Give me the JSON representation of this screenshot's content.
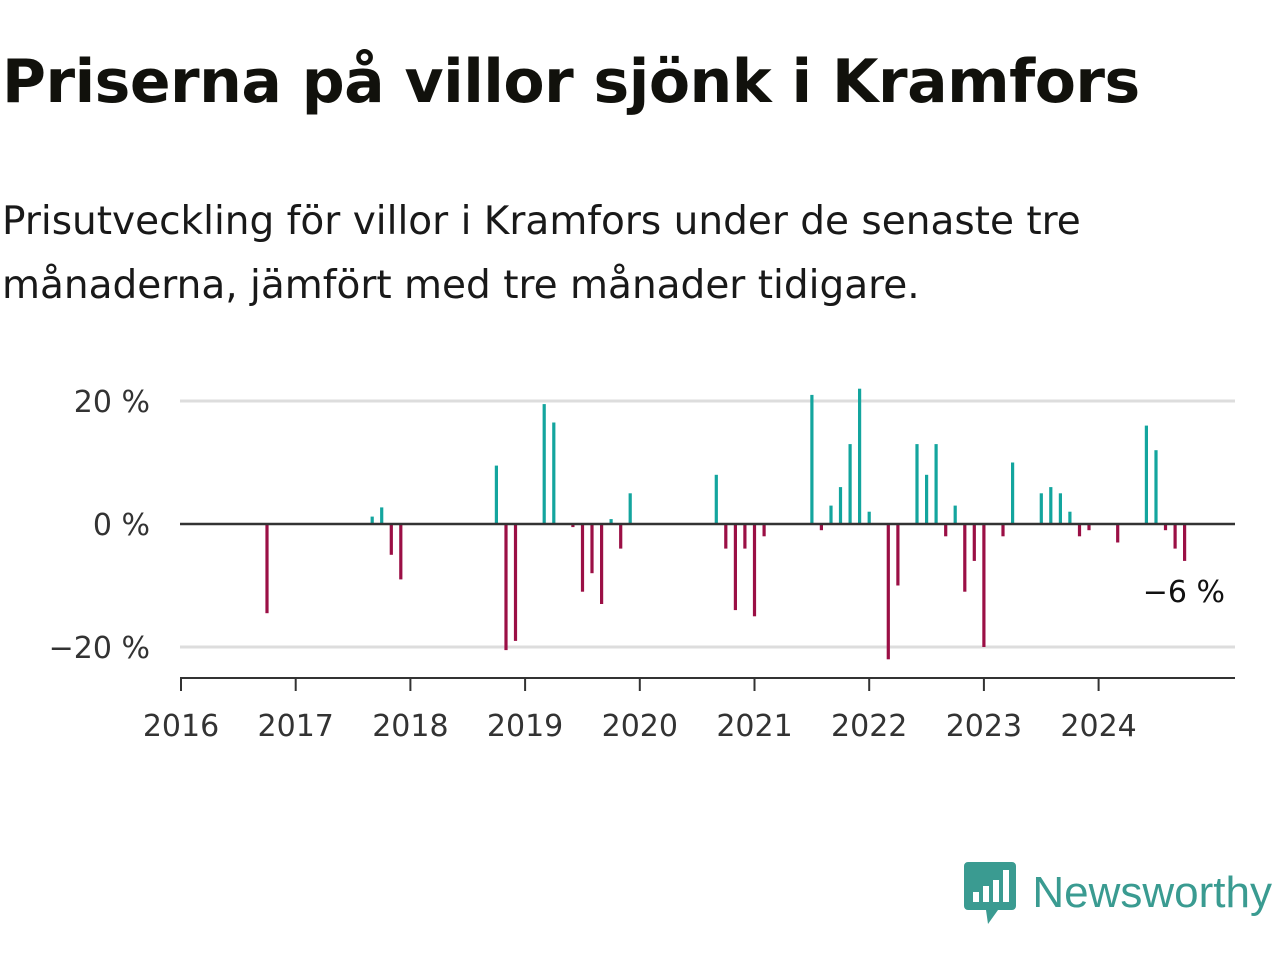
{
  "title": "Priserna på villor sjönk i Kramfors",
  "subtitle": "Prisutveckling för villor i Kramfors under de senaste tre månaderna, jämfört med tre månader tidigare.",
  "brand": {
    "name": "Newsworthy",
    "color": "#3a9b91"
  },
  "colors": {
    "positive": "#13a59e",
    "negative": "#9b0f45",
    "grid": "#dddddd",
    "axis": "#333333"
  },
  "chart_data": {
    "type": "bar",
    "title": "",
    "xlabel": "",
    "ylabel": "",
    "ylim": [
      -25,
      25
    ],
    "xlim": [
      "2016-01",
      "2025-03"
    ],
    "grid": true,
    "y_ticks": [
      {
        "value": 20,
        "label": "20 %"
      },
      {
        "value": 0,
        "label": "0 %"
      },
      {
        "value": -20,
        "label": "−20 %"
      }
    ],
    "x_ticks": [
      "2016",
      "2017",
      "2018",
      "2019",
      "2020",
      "2021",
      "2022",
      "2023",
      "2024"
    ],
    "end_label": "−6 %",
    "series": [
      {
        "values": [
          [
            "2016-10",
            -14.5
          ],
          [
            "2017-09",
            1.2
          ],
          [
            "2017-10",
            2.7
          ],
          [
            "2017-11",
            -5
          ],
          [
            "2017-12",
            -9
          ],
          [
            "2018-10",
            9.5
          ],
          [
            "2018-11",
            -20.5
          ],
          [
            "2018-12",
            -19
          ],
          [
            "2019-03",
            19.5
          ],
          [
            "2019-04",
            16.5
          ],
          [
            "2019-06",
            -0.5
          ],
          [
            "2019-07",
            -11
          ],
          [
            "2019-08",
            -8
          ],
          [
            "2019-09",
            -13
          ],
          [
            "2019-10",
            0.8
          ],
          [
            "2019-11",
            -4
          ],
          [
            "2019-12",
            5
          ],
          [
            "2020-09",
            8
          ],
          [
            "2020-10",
            -4
          ],
          [
            "2020-11",
            -14
          ],
          [
            "2020-12",
            -4
          ],
          [
            "2021-01",
            -15
          ],
          [
            "2021-02",
            -2
          ],
          [
            "2021-07",
            21
          ],
          [
            "2021-08",
            -1
          ],
          [
            "2021-09",
            3
          ],
          [
            "2021-10",
            6
          ],
          [
            "2021-11",
            13
          ],
          [
            "2021-12",
            22
          ],
          [
            "2022-01",
            2
          ],
          [
            "2022-03",
            -22
          ],
          [
            "2022-04",
            -10
          ],
          [
            "2022-06",
            13
          ],
          [
            "2022-07",
            8
          ],
          [
            "2022-08",
            13
          ],
          [
            "2022-09",
            -2
          ],
          [
            "2022-10",
            3
          ],
          [
            "2022-11",
            -11
          ],
          [
            "2022-12",
            -6
          ],
          [
            "2023-01",
            -20
          ],
          [
            "2023-03",
            -2
          ],
          [
            "2023-04",
            10
          ],
          [
            "2023-07",
            5
          ],
          [
            "2023-08",
            6
          ],
          [
            "2023-09",
            5
          ],
          [
            "2023-10",
            2
          ],
          [
            "2023-11",
            -2
          ],
          [
            "2023-12",
            -1
          ],
          [
            "2024-03",
            -3
          ],
          [
            "2024-06",
            16
          ],
          [
            "2024-07",
            12
          ],
          [
            "2024-08",
            -1
          ],
          [
            "2024-09",
            -4
          ],
          [
            "2024-10",
            -6
          ]
        ]
      }
    ]
  }
}
